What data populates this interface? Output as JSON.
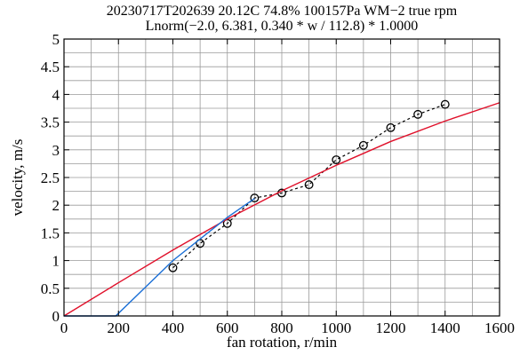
{
  "chart_data": {
    "type": "line",
    "title_lines": [
      "20230717T202639 20.12C 74.8% 100157Pa WM−2 true rpm",
      "Lnorm(−2.0, 6.381, 0.340 * w / 112.8) * 1.0000"
    ],
    "xlabel": "fan rotation, r/min",
    "ylabel": "velocity, m/s",
    "xlim": [
      0,
      1600
    ],
    "ylim": [
      0,
      5
    ],
    "x_ticks": [
      "0",
      "200",
      "400",
      "600",
      "800",
      "1000",
      "1200",
      "1400",
      "1600"
    ],
    "y_ticks": [
      "0",
      "0.5",
      "1",
      "1.5",
      "2",
      "2.5",
      "3",
      "3.5",
      "4",
      "4.5",
      "5"
    ],
    "x_tick_values": [
      0,
      200,
      400,
      600,
      800,
      1000,
      1200,
      1400,
      1600
    ],
    "y_tick_values": [
      0,
      0.5,
      1,
      1.5,
      2,
      2.5,
      3,
      3.5,
      4,
      4.5,
      5
    ],
    "grid": true,
    "series": [
      {
        "style": "dashed-circles",
        "color": "#000000",
        "x": [
          400,
          500,
          600,
          700,
          800,
          900,
          1000,
          1100,
          1200,
          1300,
          1400
        ],
        "y": [
          0.87,
          1.31,
          1.67,
          2.13,
          2.22,
          2.37,
          2.82,
          3.08,
          3.4,
          3.64,
          3.82
        ]
      },
      {
        "style": "solid",
        "color": "#e0102a",
        "x": [
          0,
          200,
          400,
          600,
          800,
          1000,
          1200,
          1400,
          1600
        ],
        "y": [
          0.0,
          0.6,
          1.19,
          1.75,
          2.26,
          2.72,
          3.15,
          3.52,
          3.85
        ]
      },
      {
        "style": "solid",
        "color": "#1a6fd6",
        "x": [
          0,
          190,
          400,
          600,
          700
        ],
        "y": [
          0.0,
          0.0,
          1.0,
          1.78,
          2.12
        ]
      }
    ]
  }
}
